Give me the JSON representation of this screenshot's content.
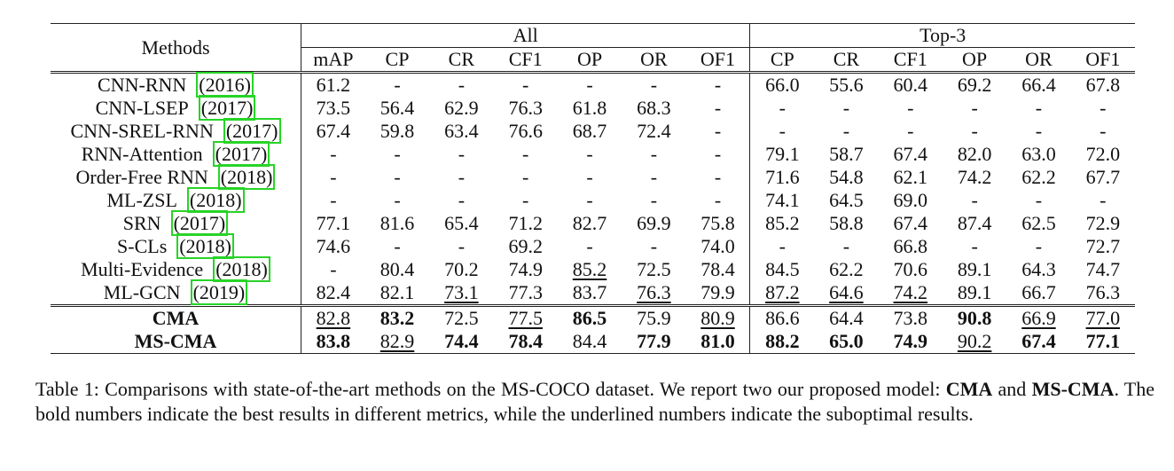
{
  "table": {
    "methods_header": "Methods",
    "groups": [
      "All",
      "Top-3"
    ],
    "metrics_all": [
      "mAP",
      "CP",
      "CR",
      "CF1",
      "OP",
      "OR",
      "OF1"
    ],
    "metrics_top3": [
      "CP",
      "CR",
      "CF1",
      "OP",
      "OR",
      "OF1"
    ],
    "rows": [
      {
        "name": "CNN-RNN",
        "year": "2016",
        "values": [
          "61.2",
          "-",
          "-",
          "-",
          "-",
          "-",
          "-",
          "66.0",
          "55.6",
          "60.4",
          "69.2",
          "66.4",
          "67.8"
        ]
      },
      {
        "name": "CNN-LSEP",
        "year": "2017",
        "values": [
          "73.5",
          "56.4",
          "62.9",
          "76.3",
          "61.8",
          "68.3",
          "-",
          "-",
          "-",
          "-",
          "-",
          "-",
          "-"
        ]
      },
      {
        "name": "CNN-SREL-RNN",
        "year": "2017",
        "values": [
          "67.4",
          "59.8",
          "63.4",
          "76.6",
          "68.7",
          "72.4",
          "-",
          "-",
          "-",
          "-",
          "-",
          "-",
          "-"
        ]
      },
      {
        "name": "RNN-Attention",
        "year": "2017",
        "values": [
          "-",
          "-",
          "-",
          "-",
          "-",
          "-",
          "-",
          "79.1",
          "58.7",
          "67.4",
          "82.0",
          "63.0",
          "72.0"
        ]
      },
      {
        "name": "Order-Free RNN",
        "year": "2018",
        "values": [
          "-",
          "-",
          "-",
          "-",
          "-",
          "-",
          "-",
          "71.6",
          "54.8",
          "62.1",
          "74.2",
          "62.2",
          "67.7"
        ]
      },
      {
        "name": "ML-ZSL",
        "year": "2018",
        "values": [
          "-",
          "-",
          "-",
          "-",
          "-",
          "-",
          "-",
          "74.1",
          "64.5",
          "69.0",
          "-",
          "-",
          "-"
        ]
      },
      {
        "name": "SRN",
        "year": "2017",
        "values": [
          "77.1",
          "81.6",
          "65.4",
          "71.2",
          "82.7",
          "69.9",
          "75.8",
          "85.2",
          "58.8",
          "67.4",
          "87.4",
          "62.5",
          "72.9"
        ]
      },
      {
        "name": "S-CLs",
        "year": "2018",
        "values": [
          "74.6",
          "-",
          "-",
          "69.2",
          "-",
          "-",
          "74.0",
          "-",
          "-",
          "66.8",
          "-",
          "-",
          "72.7"
        ]
      },
      {
        "name": "Multi-Evidence",
        "year": "2018",
        "values": [
          "-",
          "80.4",
          "70.2",
          "74.9",
          "85.2",
          "72.5",
          "78.4",
          "84.5",
          "62.2",
          "70.6",
          "89.1",
          "64.3",
          "74.7"
        ],
        "underline": [
          4
        ]
      },
      {
        "name": "ML-GCN",
        "year": "2019",
        "values": [
          "82.4",
          "82.1",
          "73.1",
          "77.3",
          "83.7",
          "76.3",
          "79.9",
          "87.2",
          "64.6",
          "74.2",
          "89.1",
          "66.7",
          "76.3"
        ],
        "underline": [
          2,
          5,
          7,
          8,
          9
        ]
      }
    ],
    "proposed_rows": [
      {
        "name": "CMA",
        "values": [
          "82.8",
          "83.2",
          "72.5",
          "77.5",
          "86.5",
          "75.9",
          "80.9",
          "86.6",
          "64.4",
          "73.8",
          "90.8",
          "66.9",
          "77.0"
        ],
        "bold": [
          1,
          4,
          10
        ],
        "underline": [
          0,
          3,
          6,
          11,
          12
        ]
      },
      {
        "name": "MS-CMA",
        "values": [
          "83.8",
          "82.9",
          "74.4",
          "78.4",
          "84.4",
          "77.9",
          "81.0",
          "88.2",
          "65.0",
          "74.9",
          "90.2",
          "67.4",
          "77.1"
        ],
        "bold": [
          0,
          2,
          3,
          5,
          6,
          7,
          8,
          9,
          11,
          12
        ],
        "underline": [
          1,
          10
        ]
      }
    ]
  },
  "caption": {
    "prefix": "Table 1: Comparisons with state-of-the-art methods on the MS-COCO dataset. We report two our proposed model: ",
    "model1": "CMA",
    "and": " and ",
    "model2": "MS-CMA",
    "suffix": ". The bold numbers indicate the best results in different metrics, while the underlined numbers indicate the suboptimal results."
  }
}
